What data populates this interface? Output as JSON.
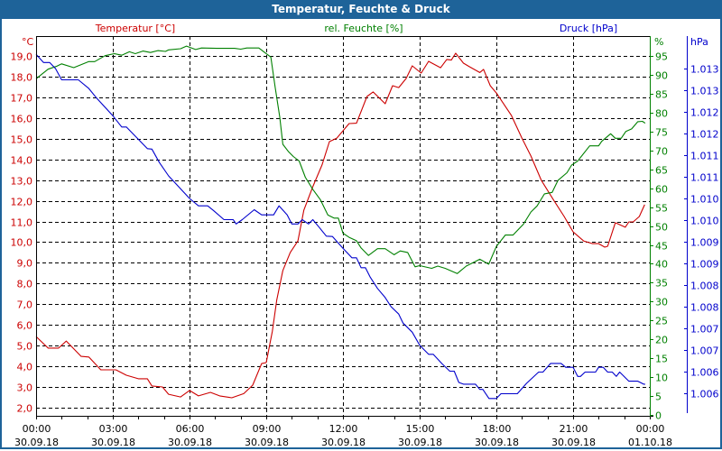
{
  "window": {
    "title": "Temperatur, Feuchte & Druck"
  },
  "colors": {
    "temperature": "#cc0000",
    "humidity": "#008000",
    "pressure": "#0000cc",
    "titlebar": "#1e6399"
  },
  "chart_data": {
    "type": "line",
    "title": "Temperatur, Feuchte & Druck",
    "xlabel": "",
    "x_unit": "hours since 00:00 30.09.18",
    "xlim": [
      0,
      24
    ],
    "x_ticks": [
      {
        "value": 0,
        "time": "00:00",
        "date": "30.09.18"
      },
      {
        "value": 3,
        "time": "03:00",
        "date": "30.09.18"
      },
      {
        "value": 6,
        "time": "06:00",
        "date": "30.09.18"
      },
      {
        "value": 9,
        "time": "09:00",
        "date": "30.09.18"
      },
      {
        "value": 12,
        "time": "12:00",
        "date": "30.09.18"
      },
      {
        "value": 15,
        "time": "15:00",
        "date": "30.09.18"
      },
      {
        "value": 18,
        "time": "18:00",
        "date": "30.09.18"
      },
      {
        "value": 21,
        "time": "21:00",
        "date": "30.09.18"
      },
      {
        "value": 24,
        "time": "00:00",
        "date": "01.10.18"
      }
    ],
    "axes": {
      "temperature": {
        "label": "Temperatur [°C]",
        "unit": "°C",
        "ticks": [
          "19,0",
          "18,0",
          "17,0",
          "16,0",
          "15,0",
          "14,0",
          "13,0",
          "12,0",
          "11,0",
          "10,0",
          "9,0",
          "8,0",
          "7,0",
          "6,0",
          "5,0",
          "4,0",
          "3,0",
          "2,0"
        ],
        "tick_values": [
          19,
          18,
          17,
          16,
          15,
          14,
          13,
          12,
          11,
          10,
          9,
          8,
          7,
          6,
          5,
          4,
          3,
          2
        ]
      },
      "humidity": {
        "label": "rel. Feuchte [%]",
        "unit": "%",
        "ticks": [
          "95",
          "90",
          "85",
          "80",
          "75",
          "70",
          "65",
          "60",
          "55",
          "50",
          "45",
          "40",
          "35",
          "30",
          "25",
          "20",
          "15",
          "10",
          "5",
          "0"
        ],
        "tick_values": [
          95,
          90,
          85,
          80,
          75,
          70,
          65,
          60,
          55,
          50,
          45,
          40,
          35,
          30,
          25,
          20,
          15,
          10,
          5,
          0
        ]
      },
      "pressure": {
        "label": "Druck [hPa]",
        "unit": "hPa",
        "ticks": [
          "1.013",
          "1.013",
          "1.012",
          "1.012",
          "1.011",
          "1.011",
          "1.010",
          "1.010",
          "1.009",
          "1.009",
          "1.008",
          "1.008",
          "1.007",
          "1.007",
          "1.006",
          "1.006"
        ],
        "tick_values": [
          1013,
          1012.5,
          1012,
          1011.5,
          1011,
          1010.5,
          1010,
          1009.5,
          1009,
          1008.5,
          1008,
          1007.5,
          1007,
          1006.5,
          1006,
          1005.5
        ]
      }
    },
    "grid": true,
    "series": [
      {
        "name": "Temperatur",
        "axis": "temperature",
        "points": [
          [
            0,
            5.44
          ],
          [
            0.47,
            4.88
          ],
          [
            0.88,
            4.88
          ],
          [
            1.18,
            5.22
          ],
          [
            1.76,
            4.48
          ],
          [
            2.06,
            4.45
          ],
          [
            2.53,
            3.83
          ],
          [
            3.12,
            3.83
          ],
          [
            3.53,
            3.57
          ],
          [
            4.0,
            3.4
          ],
          [
            4.35,
            3.4
          ],
          [
            4.53,
            3.05
          ],
          [
            4.94,
            3.0
          ],
          [
            5.18,
            2.65
          ],
          [
            5.65,
            2.52
          ],
          [
            6.0,
            2.83
          ],
          [
            6.35,
            2.57
          ],
          [
            6.82,
            2.74
          ],
          [
            7.18,
            2.57
          ],
          [
            7.65,
            2.48
          ],
          [
            8.12,
            2.68
          ],
          [
            8.47,
            3.09
          ],
          [
            8.82,
            4.13
          ],
          [
            9.0,
            4.18
          ],
          [
            9.24,
            5.7
          ],
          [
            9.41,
            7.19
          ],
          [
            9.65,
            8.63
          ],
          [
            9.94,
            9.5
          ],
          [
            10.24,
            10.06
          ],
          [
            10.47,
            11.55
          ],
          [
            10.82,
            12.68
          ],
          [
            11.18,
            13.73
          ],
          [
            11.47,
            14.86
          ],
          [
            11.76,
            15.03
          ],
          [
            12.24,
            15.73
          ],
          [
            12.53,
            15.75
          ],
          [
            12.94,
            17.04
          ],
          [
            13.18,
            17.26
          ],
          [
            13.65,
            16.69
          ],
          [
            13.94,
            17.56
          ],
          [
            14.18,
            17.47
          ],
          [
            14.47,
            17.91
          ],
          [
            14.71,
            18.52
          ],
          [
            15.06,
            18.17
          ],
          [
            15.35,
            18.74
          ],
          [
            15.82,
            18.43
          ],
          [
            16.06,
            18.83
          ],
          [
            16.24,
            18.8
          ],
          [
            16.41,
            19.13
          ],
          [
            16.71,
            18.65
          ],
          [
            16.94,
            18.48
          ],
          [
            17.35,
            18.2
          ],
          [
            17.5,
            18.35
          ],
          [
            17.76,
            17.56
          ],
          [
            18.0,
            17.21
          ],
          [
            18.59,
            16.12
          ],
          [
            19.0,
            15.03
          ],
          [
            19.35,
            14.16
          ],
          [
            19.76,
            12.98
          ],
          [
            20.24,
            12.03
          ],
          [
            20.65,
            11.24
          ],
          [
            21.0,
            10.5
          ],
          [
            21.41,
            10.06
          ],
          [
            21.76,
            9.93
          ],
          [
            22.0,
            9.93
          ],
          [
            22.24,
            9.76
          ],
          [
            22.35,
            9.8
          ],
          [
            22.65,
            10.94
          ],
          [
            23.04,
            10.72
          ],
          [
            23.18,
            10.98
          ],
          [
            23.35,
            10.98
          ],
          [
            23.59,
            11.24
          ],
          [
            23.8,
            11.81
          ]
        ]
      },
      {
        "name": "rel. Feuchte",
        "axis": "humidity",
        "points": [
          [
            0,
            88.96
          ],
          [
            0.47,
            91.5
          ],
          [
            0.82,
            92.3
          ],
          [
            1.0,
            92.9
          ],
          [
            1.47,
            91.9
          ],
          [
            2.06,
            93.5
          ],
          [
            2.29,
            93.5
          ],
          [
            2.7,
            95.07
          ],
          [
            3.06,
            95.6
          ],
          [
            3.35,
            95.2
          ],
          [
            3.65,
            96.1
          ],
          [
            3.88,
            95.6
          ],
          [
            4.18,
            96.3
          ],
          [
            4.47,
            95.9
          ],
          [
            4.76,
            96.4
          ],
          [
            5.06,
            96.2
          ],
          [
            5.18,
            96.6
          ],
          [
            5.65,
            96.9
          ],
          [
            5.88,
            97.6
          ],
          [
            6.24,
            96.7
          ],
          [
            6.47,
            97.1
          ],
          [
            7.06,
            97.0
          ],
          [
            7.76,
            97.0
          ],
          [
            8.0,
            96.8
          ],
          [
            8.24,
            97.1
          ],
          [
            8.71,
            97.1
          ],
          [
            8.94,
            95.9
          ],
          [
            9.18,
            94.7
          ],
          [
            9.35,
            86.7
          ],
          [
            9.53,
            78.8
          ],
          [
            9.65,
            71.6
          ],
          [
            9.88,
            69.6
          ],
          [
            10.06,
            68.4
          ],
          [
            10.29,
            67.2
          ],
          [
            10.53,
            62.9
          ],
          [
            10.82,
            59.7
          ],
          [
            11.12,
            56.9
          ],
          [
            11.41,
            52.9
          ],
          [
            11.65,
            52.1
          ],
          [
            11.82,
            52.1
          ],
          [
            12.0,
            48.1
          ],
          [
            12.24,
            47.0
          ],
          [
            12.53,
            46.1
          ],
          [
            12.71,
            44.2
          ],
          [
            13.0,
            42.2
          ],
          [
            13.35,
            44.0
          ],
          [
            13.65,
            44.0
          ],
          [
            14.0,
            42.4
          ],
          [
            14.24,
            43.4
          ],
          [
            14.53,
            43.0
          ],
          [
            14.82,
            39.2
          ],
          [
            15.0,
            39.5
          ],
          [
            15.47,
            38.8
          ],
          [
            15.71,
            39.4
          ],
          [
            16.0,
            38.8
          ],
          [
            16.47,
            37.4
          ],
          [
            16.82,
            39.4
          ],
          [
            17.35,
            41.2
          ],
          [
            17.7,
            39.9
          ],
          [
            18.0,
            44.6
          ],
          [
            18.35,
            47.6
          ],
          [
            18.65,
            47.6
          ],
          [
            19.06,
            50.5
          ],
          [
            19.35,
            53.7
          ],
          [
            19.59,
            55.3
          ],
          [
            19.88,
            58.5
          ],
          [
            20.18,
            58.9
          ],
          [
            20.41,
            62.1
          ],
          [
            20.76,
            64.1
          ],
          [
            20.94,
            66.1
          ],
          [
            21.18,
            67.2
          ],
          [
            21.65,
            71.2
          ],
          [
            22.0,
            71.2
          ],
          [
            22.12,
            72.4
          ],
          [
            22.47,
            74.4
          ],
          [
            22.65,
            73.2
          ],
          [
            22.88,
            73.2
          ],
          [
            23.06,
            75.0
          ],
          [
            23.29,
            75.7
          ],
          [
            23.53,
            77.6
          ],
          [
            23.71,
            77.7
          ],
          [
            23.82,
            77.2
          ]
        ]
      },
      {
        "name": "Druck",
        "axis": "pressure",
        "points": [
          [
            0,
            1013.33
          ],
          [
            0.29,
            1013.14
          ],
          [
            0.53,
            1013.14
          ],
          [
            0.76,
            1013.0
          ],
          [
            1.0,
            1012.74
          ],
          [
            1.65,
            1012.74
          ],
          [
            2.06,
            1012.54
          ],
          [
            2.35,
            1012.33
          ],
          [
            3.0,
            1011.91
          ],
          [
            3.35,
            1011.65
          ],
          [
            3.53,
            1011.65
          ],
          [
            4.35,
            1011.15
          ],
          [
            4.53,
            1011.14
          ],
          [
            4.82,
            1010.83
          ],
          [
            5.18,
            1010.52
          ],
          [
            6.0,
            1010.0
          ],
          [
            6.35,
            1009.83
          ],
          [
            6.71,
            1009.83
          ],
          [
            6.94,
            1009.72
          ],
          [
            7.35,
            1009.51
          ],
          [
            7.71,
            1009.51
          ],
          [
            7.82,
            1009.41
          ],
          [
            8.06,
            1009.51
          ],
          [
            8.53,
            1009.74
          ],
          [
            8.82,
            1009.62
          ],
          [
            9.29,
            1009.62
          ],
          [
            9.5,
            1009.83
          ],
          [
            9.82,
            1009.62
          ],
          [
            10.0,
            1009.41
          ],
          [
            10.24,
            1009.41
          ],
          [
            10.41,
            1009.51
          ],
          [
            10.65,
            1009.41
          ],
          [
            10.82,
            1009.51
          ],
          [
            11.06,
            1009.34
          ],
          [
            11.35,
            1009.13
          ],
          [
            11.59,
            1009.12
          ],
          [
            12.0,
            1008.85
          ],
          [
            12.35,
            1008.63
          ],
          [
            12.53,
            1008.63
          ],
          [
            12.71,
            1008.4
          ],
          [
            12.88,
            1008.4
          ],
          [
            13.06,
            1008.19
          ],
          [
            13.35,
            1007.92
          ],
          [
            13.65,
            1007.71
          ],
          [
            13.88,
            1007.5
          ],
          [
            14.18,
            1007.33
          ],
          [
            14.35,
            1007.12
          ],
          [
            14.71,
            1006.91
          ],
          [
            15.0,
            1006.61
          ],
          [
            15.35,
            1006.4
          ],
          [
            15.53,
            1006.4
          ],
          [
            15.88,
            1006.18
          ],
          [
            16.18,
            1006.01
          ],
          [
            16.35,
            1006.01
          ],
          [
            16.53,
            1005.75
          ],
          [
            16.71,
            1005.71
          ],
          [
            17.18,
            1005.71
          ],
          [
            17.35,
            1005.59
          ],
          [
            17.47,
            1005.59
          ],
          [
            17.71,
            1005.38
          ],
          [
            18.0,
            1005.38
          ],
          [
            18.18,
            1005.49
          ],
          [
            18.82,
            1005.49
          ],
          [
            19.18,
            1005.73
          ],
          [
            19.65,
            1005.99
          ],
          [
            19.82,
            1005.99
          ],
          [
            20.12,
            1006.19
          ],
          [
            20.53,
            1006.19
          ],
          [
            20.71,
            1006.1
          ],
          [
            21.0,
            1006.1
          ],
          [
            21.18,
            1005.89
          ],
          [
            21.29,
            1005.89
          ],
          [
            21.47,
            1005.99
          ],
          [
            21.88,
            1005.99
          ],
          [
            22.0,
            1006.1
          ],
          [
            22.18,
            1006.1
          ],
          [
            22.35,
            1005.99
          ],
          [
            22.53,
            1005.99
          ],
          [
            22.69,
            1005.89
          ],
          [
            22.82,
            1005.99
          ],
          [
            23.18,
            1005.78
          ],
          [
            23.53,
            1005.78
          ],
          [
            23.76,
            1005.71
          ],
          [
            23.82,
            1005.71
          ]
        ]
      }
    ]
  }
}
